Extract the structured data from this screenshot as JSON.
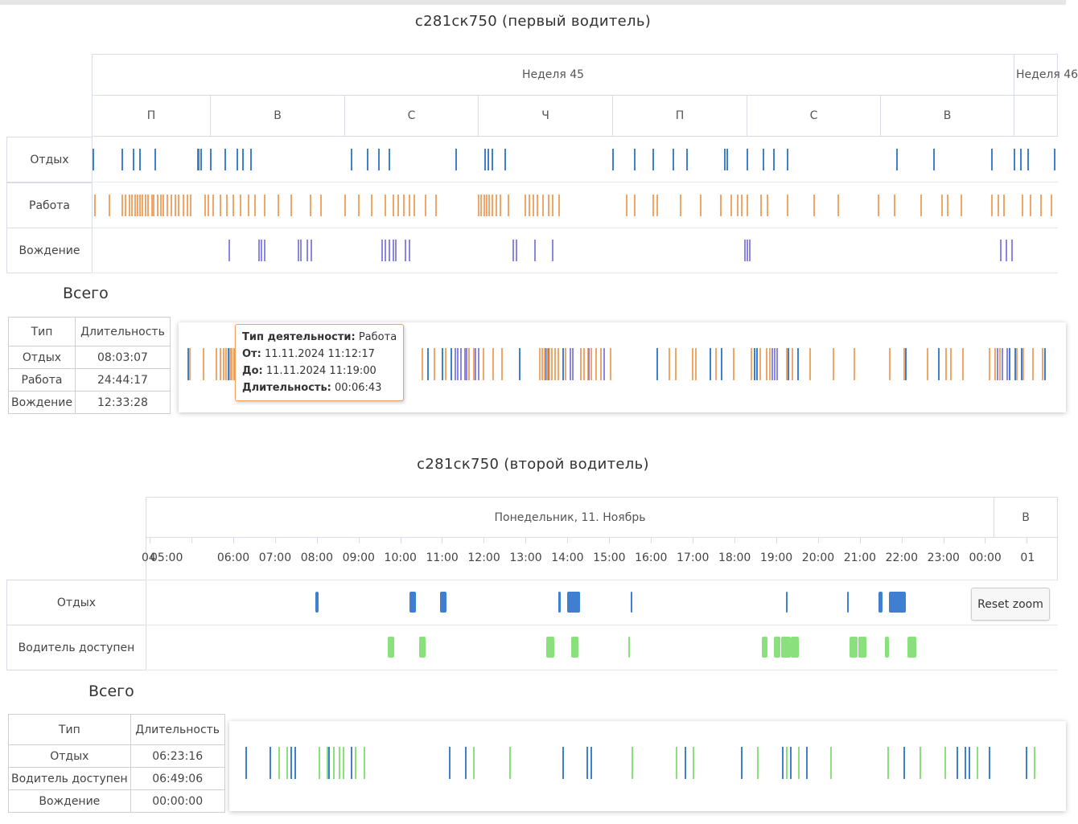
{
  "colors": {
    "rest": "#3f7fcf",
    "work": "#f0a668",
    "driving": "#8b86e0",
    "available": "#8be07e"
  },
  "section1": {
    "title": "с281ск750 (первый водитель)",
    "week_label": "Неделя 45",
    "week_next_label": "Неделя 46",
    "days": [
      "П",
      "В",
      "С",
      "Ч",
      "П",
      "С",
      "В"
    ],
    "rows": [
      "Отдых",
      "Работа",
      "Вождение"
    ],
    "summary_title": "Всего",
    "summary_headers": [
      "Тип",
      "Длительность"
    ],
    "summary_rows": [
      {
        "type": "Отдых",
        "duration": "08:03:07"
      },
      {
        "type": "Работа",
        "duration": "24:44:17"
      },
      {
        "type": "Вождение",
        "duration": "12:33:28"
      }
    ],
    "tooltip": {
      "type_label": "Тип деятельности:",
      "type_value": "Работа",
      "from_label": "От:",
      "from_value": "11.11.2024 11:12:17",
      "to_label": "До:",
      "to_value": "11.11.2024 11:19:00",
      "dur_label": "Длительность:",
      "dur_value": "00:06:43"
    }
  },
  "section2": {
    "title": "с281ск750 (второй водитель)",
    "day_label": "Понедельник, 11. Ноябрь",
    "day_next_label": "В",
    "hour_ticks": [
      "04",
      "05:00",
      "06:00",
      "07:00",
      "08:00",
      "09:00",
      "10:00",
      "11:00",
      "12:00",
      "13:00",
      "14:00",
      "15:00",
      "16:00",
      "17:00",
      "18:00",
      "19:00",
      "20:00",
      "21:00",
      "22:00",
      "23:00",
      "00:00",
      "01"
    ],
    "rows": [
      "Отдых",
      "Водитель доступен"
    ],
    "reset_label": "Reset zoom",
    "summary_title": "Всего",
    "summary_headers": [
      "Тип",
      "Длительность"
    ],
    "summary_rows": [
      {
        "type": "Отдых",
        "duration": "06:23:16"
      },
      {
        "type": "Водитель доступен",
        "duration": "06:49:06"
      },
      {
        "type": "Вождение",
        "duration": "00:00:00"
      }
    ]
  },
  "chart_data": [
    {
      "type": "timeline",
      "title": "с281ск750 (первый водитель)",
      "x_axis": "days of week 45 (П, В, С, Ч, П, С, В)",
      "x_range_days": [
        0,
        7.35
      ],
      "series": [
        {
          "name": "Отдых",
          "events_day": [
            0.01,
            0.25,
            0.35,
            0.4,
            0.53,
            0.89,
            0.9,
            0.92,
            1.0,
            1.11,
            1.2,
            1.24,
            1.3,
            2.05,
            2.17,
            2.25,
            2.33,
            2.83,
            3.05,
            3.07,
            3.1,
            3.2,
            4.0,
            4.16,
            4.3,
            4.45,
            4.55,
            4.83,
            4.85,
            5.0,
            5.12,
            5.2,
            5.3,
            6.12,
            6.4,
            6.83,
            7.0,
            7.05,
            7.1,
            7.3
          ]
        },
        {
          "name": "Работа",
          "events_day": [
            0.02,
            0.14,
            0.25,
            0.28,
            0.31,
            0.33,
            0.36,
            0.38,
            0.4,
            0.42,
            0.45,
            0.47,
            0.5,
            0.52,
            0.55,
            0.58,
            0.6,
            0.63,
            0.67,
            0.7,
            0.73,
            0.77,
            0.8,
            0.83,
            0.95,
            0.98,
            1.02,
            1.07,
            1.12,
            1.17,
            1.22,
            1.28,
            1.33,
            1.4,
            1.5,
            1.6,
            1.74,
            1.82,
            2.0,
            2.1,
            2.2,
            2.3,
            2.36,
            2.4,
            2.44,
            2.48,
            2.52,
            2.6,
            2.68,
            3.0,
            3.02,
            3.04,
            3.06,
            3.08,
            3.1,
            3.13,
            3.16,
            3.22,
            3.35,
            3.38,
            3.41,
            3.44,
            3.48,
            3.52,
            3.55,
            3.6,
            4.1,
            4.16,
            4.3,
            4.33,
            4.5,
            4.65,
            4.8,
            4.88,
            4.93,
            4.96,
            5.0,
            5.1,
            5.15,
            5.3,
            5.5,
            5.68,
            5.98,
            6.1,
            6.3,
            6.46,
            6.5,
            6.6,
            6.83,
            6.88,
            6.92,
            7.06,
            7.12,
            7.2,
            7.28
          ]
        },
        {
          "name": "Вождение",
          "events_day": [
            1.14,
            1.36,
            1.38,
            1.4,
            1.65,
            1.67,
            1.72,
            1.75,
            2.28,
            2.3,
            2.33,
            2.36,
            2.38,
            2.45,
            2.48,
            3.26,
            3.28,
            3.42,
            3.55,
            4.98,
            5.0,
            5.02,
            6.9,
            6.94,
            6.98
          ]
        }
      ]
    },
    {
      "type": "timeline",
      "title": "с281ск750 (второй водитель)",
      "x_axis": "hours on Понедельник, 11. Ноябрь",
      "x_range_hours": [
        4.0,
        25.3
      ],
      "series": [
        {
          "name": "Отдых",
          "intervals_hours": [
            [
              7.97,
              8.04
            ],
            [
              10.22,
              10.38
            ],
            [
              10.95,
              11.1
            ],
            [
              13.78,
              13.85
            ],
            [
              14.0,
              14.3
            ],
            [
              15.52,
              15.54
            ],
            [
              19.23,
              19.27
            ],
            [
              20.7,
              20.74
            ],
            [
              21.45,
              21.55
            ],
            [
              21.7,
              22.1
            ]
          ]
        },
        {
          "name": "Водитель доступен",
          "intervals_hours": [
            [
              9.7,
              9.85
            ],
            [
              10.45,
              10.6
            ],
            [
              13.5,
              13.68
            ],
            [
              14.1,
              14.26
            ],
            [
              15.45,
              15.5
            ],
            [
              18.65,
              18.8
            ],
            [
              18.95,
              19.1
            ],
            [
              19.12,
              19.35
            ],
            [
              19.35,
              19.55
            ],
            [
              20.75,
              20.95
            ],
            [
              20.97,
              21.15
            ],
            [
              21.6,
              21.7
            ],
            [
              22.15,
              22.35
            ]
          ]
        },
        {
          "name": "Вождение",
          "intervals_hours": []
        }
      ]
    }
  ]
}
